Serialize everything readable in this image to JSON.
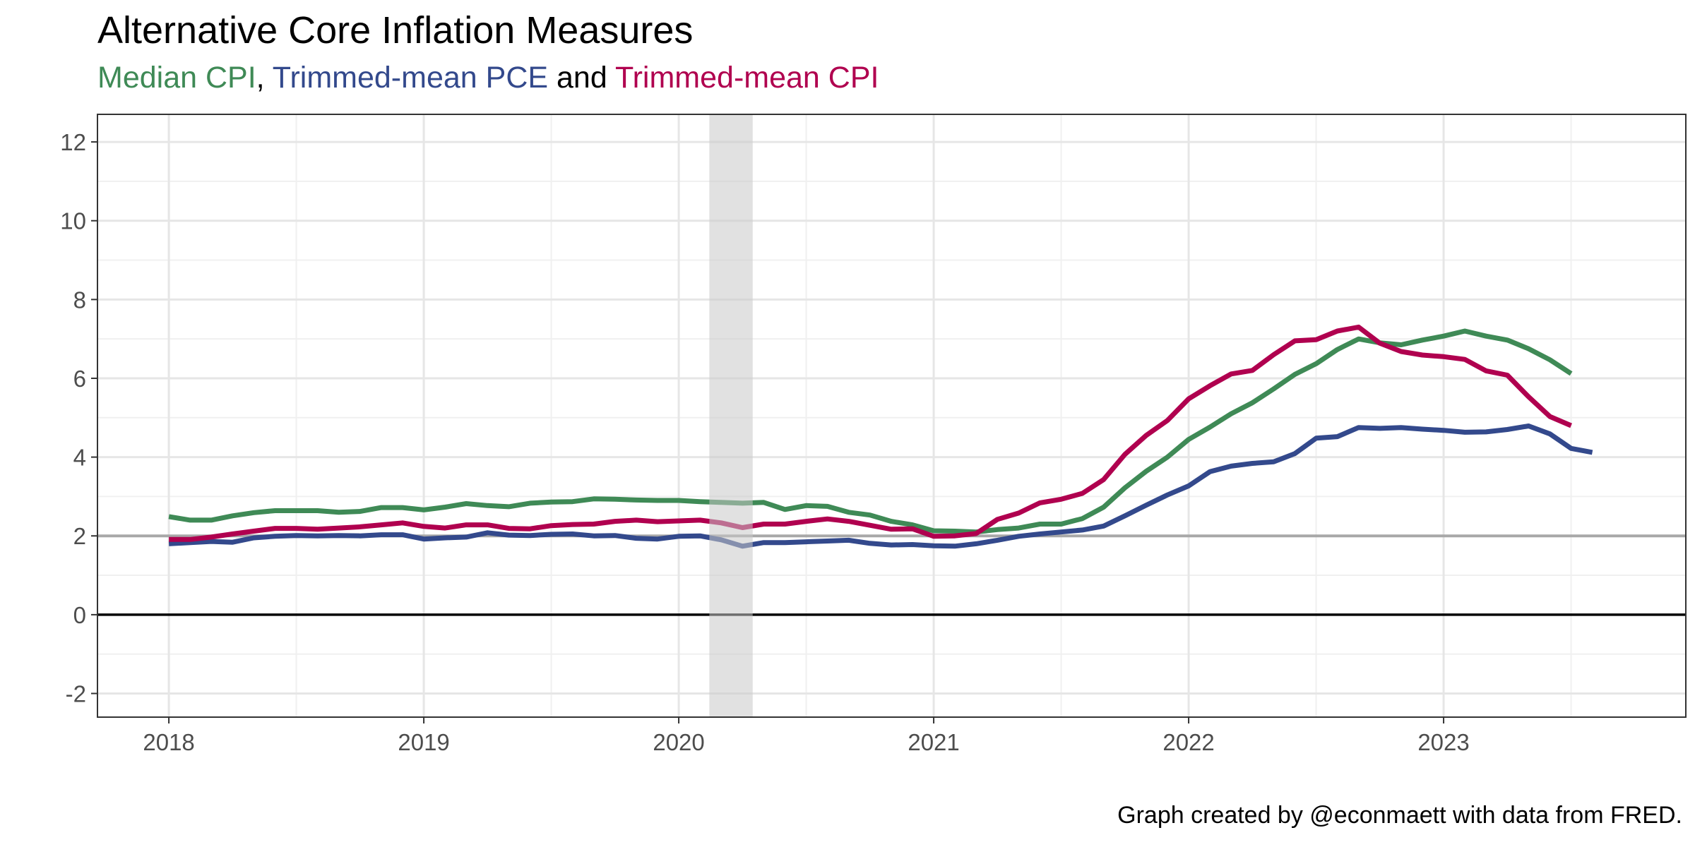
{
  "title": "Alternative Core Inflation Measures",
  "subtitle": {
    "part1": "Median CPI",
    "sep1": ", ",
    "part2": "Trimmed-mean PCE",
    "sep2": " and ",
    "part3": "Trimmed-mean CPI"
  },
  "caption": "Graph created by @econmaett with data from FRED.",
  "colors": {
    "median_cpi": "#3f8a56",
    "trimmed_pce": "#33498c",
    "trimmed_cpi": "#b0004f",
    "recession": "#e0e0e0",
    "reference_2": "#a8a8a8",
    "zero_line": "#000000"
  },
  "chart_data": {
    "type": "line",
    "title": "Alternative Core Inflation Measures",
    "xlabel": "",
    "ylabel": "",
    "xlim": [
      2017.72,
      2023.95
    ],
    "ylim": [
      -2.6,
      12.7
    ],
    "y_ticks": [
      -2,
      0,
      2,
      4,
      6,
      8,
      10,
      12
    ],
    "y_tick_labels": [
      "-2",
      "0",
      "2",
      "4",
      "6",
      "8",
      "10",
      "12"
    ],
    "x_ticks": [
      2018,
      2019,
      2020,
      2021,
      2022,
      2023
    ],
    "x_tick_labels": [
      "2018",
      "2019",
      "2020",
      "2021",
      "2022",
      "2023"
    ],
    "grid": true,
    "recession_band": [
      2020.12,
      2020.29
    ],
    "reference_lines": [
      0,
      2
    ],
    "x_start": 2018.0,
    "x_step_months": 1,
    "series": [
      {
        "name": "Median CPI",
        "color": "#3f8a56",
        "values": [
          2.49,
          2.4,
          2.4,
          2.51,
          2.59,
          2.64,
          2.64,
          2.64,
          2.6,
          2.62,
          2.72,
          2.72,
          2.66,
          2.73,
          2.82,
          2.77,
          2.74,
          2.83,
          2.86,
          2.87,
          2.94,
          2.93,
          2.91,
          2.9,
          2.9,
          2.87,
          2.85,
          2.83,
          2.85,
          2.67,
          2.77,
          2.75,
          2.6,
          2.53,
          2.37,
          2.28,
          2.13,
          2.12,
          2.1,
          2.16,
          2.2,
          2.3,
          2.3,
          2.44,
          2.73,
          3.22,
          3.64,
          4.0,
          4.45,
          4.76,
          5.1,
          5.38,
          5.73,
          6.1,
          6.37,
          6.73,
          7.0,
          6.9,
          6.85,
          6.97,
          7.07,
          7.2,
          7.07,
          6.97,
          6.75,
          6.47,
          6.12
        ]
      },
      {
        "name": "Trimmed-mean PCE",
        "color": "#33498c",
        "values": [
          1.8,
          1.83,
          1.86,
          1.84,
          1.95,
          1.99,
          2.01,
          2.0,
          2.01,
          2.0,
          2.03,
          2.03,
          1.92,
          1.95,
          1.97,
          2.08,
          2.02,
          2.01,
          2.04,
          2.05,
          2.0,
          2.01,
          1.94,
          1.92,
          1.99,
          2.0,
          1.9,
          1.74,
          1.83,
          1.83,
          1.85,
          1.87,
          1.89,
          1.81,
          1.77,
          1.78,
          1.75,
          1.74,
          1.8,
          1.89,
          1.99,
          2.05,
          2.1,
          2.15,
          2.25,
          2.51,
          2.78,
          3.04,
          3.27,
          3.63,
          3.77,
          3.84,
          3.88,
          4.09,
          4.48,
          4.52,
          4.75,
          4.73,
          4.75,
          4.71,
          4.68,
          4.63,
          4.64,
          4.7,
          4.79,
          4.59,
          4.22,
          4.12
        ]
      },
      {
        "name": "Trimmed-mean CPI",
        "color": "#b0004f",
        "values": [
          1.91,
          1.91,
          1.97,
          2.05,
          2.12,
          2.19,
          2.19,
          2.17,
          2.2,
          2.23,
          2.28,
          2.33,
          2.24,
          2.2,
          2.28,
          2.28,
          2.19,
          2.18,
          2.26,
          2.29,
          2.3,
          2.37,
          2.4,
          2.36,
          2.38,
          2.4,
          2.33,
          2.21,
          2.3,
          2.3,
          2.37,
          2.43,
          2.37,
          2.27,
          2.17,
          2.18,
          1.99,
          2.0,
          2.06,
          2.42,
          2.58,
          2.84,
          2.93,
          3.08,
          3.43,
          4.07,
          4.55,
          4.93,
          5.48,
          5.81,
          6.11,
          6.2,
          6.6,
          6.95,
          6.98,
          7.2,
          7.3,
          6.89,
          6.68,
          6.59,
          6.55,
          6.48,
          6.19,
          6.08,
          5.53,
          5.03,
          4.8
        ]
      }
    ]
  }
}
